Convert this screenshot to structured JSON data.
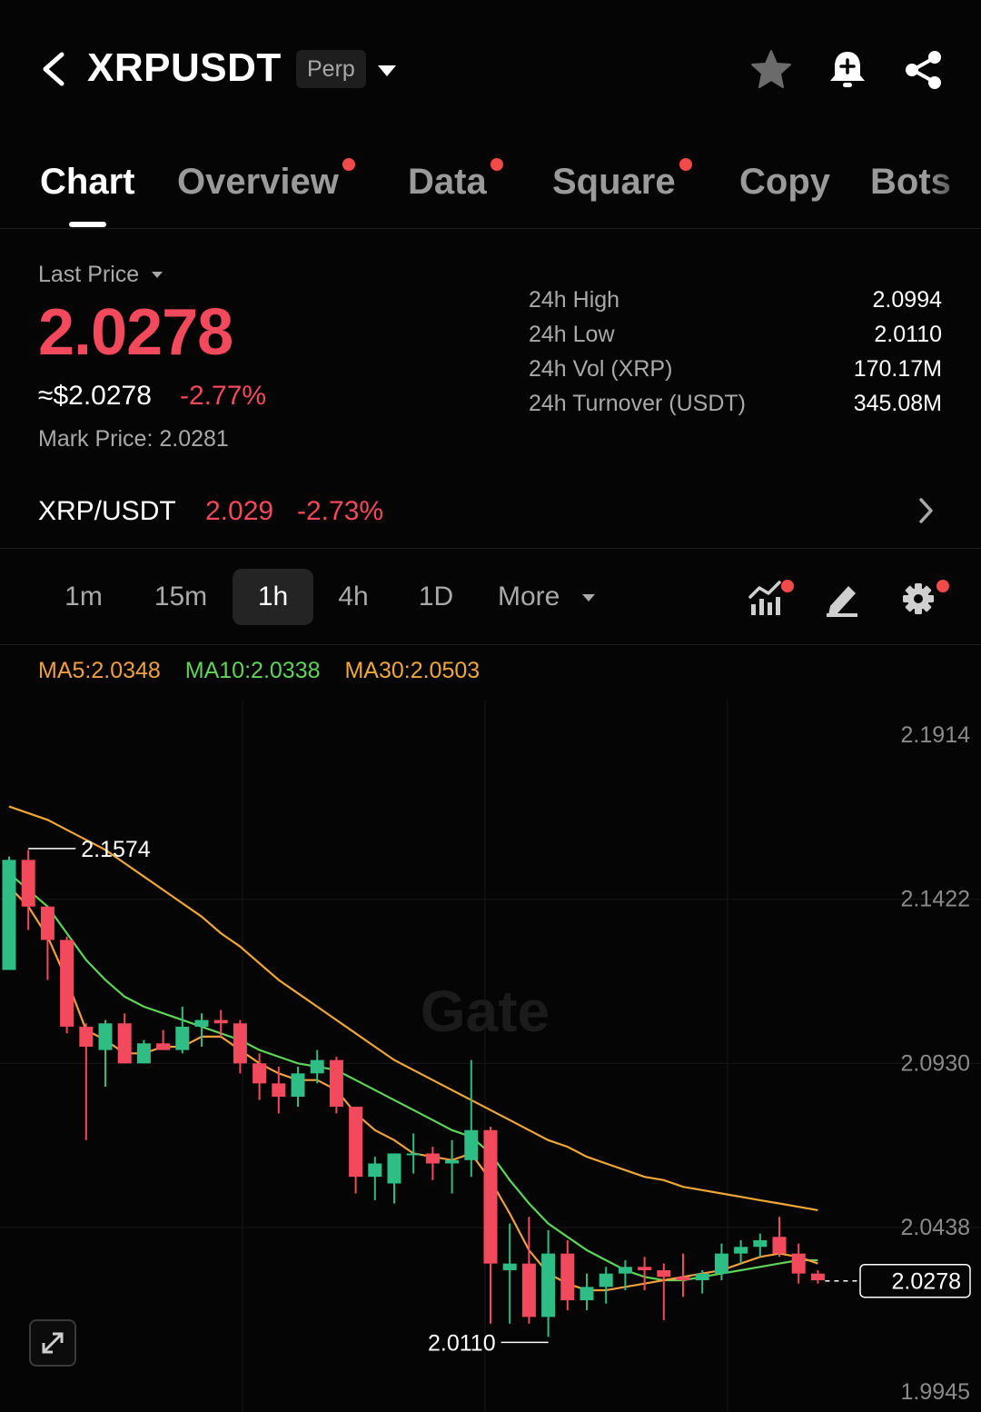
{
  "header": {
    "symbol": "XRPUSDT",
    "contract_type": "Perp",
    "icons": [
      "back-icon",
      "caret-down-icon",
      "star-icon",
      "bell-plus-icon",
      "share-icon"
    ]
  },
  "tabs": [
    {
      "label": "Chart",
      "active": true,
      "dot": false
    },
    {
      "label": "Overview",
      "active": false,
      "dot": true
    },
    {
      "label": "Data",
      "active": false,
      "dot": true
    },
    {
      "label": "Square",
      "active": false,
      "dot": true
    },
    {
      "label": "Copy",
      "active": false,
      "dot": false
    },
    {
      "label": "Bots",
      "active": false,
      "dot": false
    }
  ],
  "price": {
    "label": "Last Price",
    "last": "2.0278",
    "usd": "≈$2.0278",
    "change": "-2.77%",
    "mark_label": "Mark Price:",
    "mark_value": "2.0281"
  },
  "stats": [
    {
      "label": "24h High",
      "value": "2.0994"
    },
    {
      "label": "24h Low",
      "value": "2.0110"
    },
    {
      "label": "24h Vol (XRP)",
      "value": "170.17M"
    },
    {
      "label": "24h Turnover (USDT)",
      "value": "345.08M"
    }
  ],
  "spot": {
    "pair": "XRP/USDT",
    "price": "2.029",
    "change": "-2.73%"
  },
  "intervals": {
    "items": [
      "1m",
      "15m",
      "1h",
      "4h",
      "1D"
    ],
    "active": "1h",
    "more_label": "More",
    "tool_icons": [
      "indicator-icon",
      "draw-icon",
      "settings-icon"
    ]
  },
  "ma": {
    "ma5": "MA5:2.0348",
    "ma10": "MA10:2.0338",
    "ma30": "MA30:2.0503"
  },
  "colors": {
    "up": "#2ebd85",
    "down": "#f2495c",
    "ma5": "#f0a040",
    "ma10": "#5fd35a",
    "ma30": "#f0a73a",
    "background": "#050505"
  },
  "chart_data": {
    "type": "candlestick",
    "interval": "1h",
    "y_axis_ticks": [
      "2.1914",
      "2.1422",
      "2.0930",
      "2.0438",
      "1.9945"
    ],
    "ylim": [
      1.9945,
      2.1914
    ],
    "current_price_label": "2.0278",
    "high_marker": "2.1574",
    "low_marker": "2.0110",
    "watermark": "Gate",
    "candles": [
      {
        "o": 2.121,
        "h": 2.155,
        "l": 2.121,
        "c": 2.154
      },
      {
        "o": 2.154,
        "h": 2.157,
        "l": 2.133,
        "c": 2.14
      },
      {
        "o": 2.14,
        "h": 2.14,
        "l": 2.118,
        "c": 2.13
      },
      {
        "o": 2.13,
        "h": 2.131,
        "l": 2.102,
        "c": 2.104
      },
      {
        "o": 2.104,
        "h": 2.105,
        "l": 2.07,
        "c": 2.098
      },
      {
        "o": 2.097,
        "h": 2.106,
        "l": 2.086,
        "c": 2.105
      },
      {
        "o": 2.105,
        "h": 2.108,
        "l": 2.093,
        "c": 2.093
      },
      {
        "o": 2.093,
        "h": 2.1,
        "l": 2.093,
        "c": 2.099
      },
      {
        "o": 2.099,
        "h": 2.103,
        "l": 2.097,
        "c": 2.097
      },
      {
        "o": 2.097,
        "h": 2.11,
        "l": 2.096,
        "c": 2.104
      },
      {
        "o": 2.104,
        "h": 2.108,
        "l": 2.098,
        "c": 2.106
      },
      {
        "o": 2.106,
        "h": 2.109,
        "l": 2.101,
        "c": 2.105
      },
      {
        "o": 2.105,
        "h": 2.106,
        "l": 2.09,
        "c": 2.093
      },
      {
        "o": 2.093,
        "h": 2.096,
        "l": 2.082,
        "c": 2.087
      },
      {
        "o": 2.087,
        "h": 2.092,
        "l": 2.078,
        "c": 2.083
      },
      {
        "o": 2.083,
        "h": 2.092,
        "l": 2.08,
        "c": 2.09
      },
      {
        "o": 2.09,
        "h": 2.097,
        "l": 2.087,
        "c": 2.094
      },
      {
        "o": 2.094,
        "h": 2.095,
        "l": 2.078,
        "c": 2.08
      },
      {
        "o": 2.08,
        "h": 2.08,
        "l": 2.054,
        "c": 2.059
      },
      {
        "o": 2.059,
        "h": 2.065,
        "l": 2.052,
        "c": 2.063
      },
      {
        "o": 2.057,
        "h": 2.066,
        "l": 2.051,
        "c": 2.066
      },
      {
        "o": 2.066,
        "h": 2.072,
        "l": 2.06,
        "c": 2.066
      },
      {
        "o": 2.066,
        "h": 2.068,
        "l": 2.058,
        "c": 2.063
      },
      {
        "o": 2.063,
        "h": 2.07,
        "l": 2.054,
        "c": 2.064
      },
      {
        "o": 2.064,
        "h": 2.094,
        "l": 2.059,
        "c": 2.073
      },
      {
        "o": 2.073,
        "h": 2.074,
        "l": 2.015,
        "c": 2.033
      },
      {
        "o": 2.031,
        "h": 2.045,
        "l": 2.015,
        "c": 2.033
      },
      {
        "o": 2.033,
        "h": 2.047,
        "l": 2.015,
        "c": 2.017
      },
      {
        "o": 2.017,
        "h": 2.043,
        "l": 2.011,
        "c": 2.036
      },
      {
        "o": 2.036,
        "h": 2.04,
        "l": 2.019,
        "c": 2.022
      },
      {
        "o": 2.022,
        "h": 2.03,
        "l": 2.019,
        "c": 2.026
      },
      {
        "o": 2.026,
        "h": 2.032,
        "l": 2.021,
        "c": 2.03
      },
      {
        "o": 2.03,
        "h": 2.034,
        "l": 2.025,
        "c": 2.032
      },
      {
        "o": 2.032,
        "h": 2.035,
        "l": 2.025,
        "c": 2.031
      },
      {
        "o": 2.031,
        "h": 2.033,
        "l": 2.016,
        "c": 2.029
      },
      {
        "o": 2.029,
        "h": 2.036,
        "l": 2.023,
        "c": 2.028
      },
      {
        "o": 2.028,
        "h": 2.031,
        "l": 2.024,
        "c": 2.03
      },
      {
        "o": 2.03,
        "h": 2.039,
        "l": 2.028,
        "c": 2.036
      },
      {
        "o": 2.036,
        "h": 2.04,
        "l": 2.033,
        "c": 2.038
      },
      {
        "o": 2.038,
        "h": 2.042,
        "l": 2.035,
        "c": 2.04
      },
      {
        "o": 2.041,
        "h": 2.047,
        "l": 2.035,
        "c": 2.036
      },
      {
        "o": 2.036,
        "h": 2.039,
        "l": 2.027,
        "c": 2.03
      },
      {
        "o": 2.03,
        "h": 2.031,
        "l": 2.027,
        "c": 2.028
      }
    ],
    "ma5": [
      2.146,
      2.14,
      2.131,
      2.118,
      2.103,
      2.1,
      2.096,
      2.096,
      2.098,
      2.098,
      2.101,
      2.101,
      2.097,
      2.093,
      2.09,
      2.088,
      2.088,
      2.085,
      2.078,
      2.073,
      2.07,
      2.066,
      2.065,
      2.064,
      2.066,
      2.058,
      2.048,
      2.037,
      2.03,
      2.027,
      2.025,
      2.025,
      2.026,
      2.027,
      2.028,
      2.029,
      2.03,
      2.031,
      2.033,
      2.035,
      2.036,
      2.035,
      2.033
    ],
    "ma10": [
      2.15,
      2.145,
      2.14,
      2.132,
      2.124,
      2.118,
      2.113,
      2.11,
      2.108,
      2.106,
      2.104,
      2.102,
      2.1,
      2.097,
      2.095,
      2.093,
      2.092,
      2.091,
      2.088,
      2.085,
      2.082,
      2.079,
      2.076,
      2.073,
      2.071,
      2.066,
      2.058,
      2.051,
      2.045,
      2.041,
      2.037,
      2.034,
      2.031,
      2.029,
      2.028,
      2.028,
      2.029,
      2.03,
      2.031,
      2.032,
      2.033,
      2.034,
      2.034
    ],
    "ma30": [
      2.17,
      2.168,
      2.166,
      2.163,
      2.16,
      2.157,
      2.153,
      2.149,
      2.145,
      2.141,
      2.137,
      2.132,
      2.128,
      2.123,
      2.118,
      2.114,
      2.11,
      2.106,
      2.102,
      2.098,
      2.094,
      2.091,
      2.088,
      2.085,
      2.082,
      2.079,
      2.076,
      2.073,
      2.07,
      2.068,
      2.065,
      2.063,
      2.061,
      2.059,
      2.058,
      2.056,
      2.055,
      2.054,
      2.053,
      2.052,
      2.051,
      2.05,
      2.049
    ]
  }
}
